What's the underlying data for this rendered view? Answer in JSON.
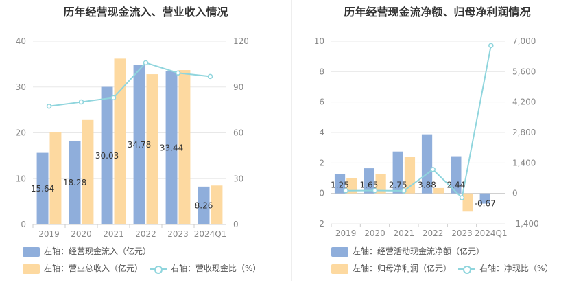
{
  "colors": {
    "bar_primary": "#8faedb",
    "bar_secondary": "#fdd9a0",
    "line": "#8fd5dd",
    "axis_text": "#888888",
    "grid": "#e8e8e8"
  },
  "chart_data": [
    {
      "type": "bar",
      "title": "历年经营现金流入、营业收入情况",
      "categories": [
        "2019",
        "2020",
        "2021",
        "2022",
        "2023",
        "2024Q1"
      ],
      "left_axis": {
        "ylim": [
          0,
          40
        ],
        "ticks": [
          "0",
          "10",
          "20",
          "30",
          "40"
        ]
      },
      "right_axis": {
        "ylim": [
          0,
          120
        ],
        "ticks": [
          "0",
          "30",
          "60",
          "90",
          "120"
        ]
      },
      "series": [
        {
          "name": "左轴：经营现金流入（亿元）",
          "axis": "left",
          "kind": "bar",
          "values": [
            15.64,
            18.28,
            30.03,
            34.78,
            33.44,
            8.26
          ],
          "labels": [
            "15.64",
            "18.28",
            "30.03",
            "34.78",
            "33.44",
            "8.26"
          ]
        },
        {
          "name": "左轴：营业总收入（亿元）",
          "axis": "left",
          "kind": "bar",
          "values": [
            20.2,
            22.8,
            36.2,
            32.8,
            33.7,
            8.5
          ]
        },
        {
          "name": "右轴：营收现金比（%）",
          "axis": "right",
          "kind": "line",
          "values": [
            77.4,
            80.2,
            83.0,
            105.9,
            99.2,
            96.9
          ]
        }
      ],
      "grid": true,
      "legend_position": "bottom-left"
    },
    {
      "type": "bar",
      "title": "历年经营现金流净额、归母净利润情况",
      "categories": [
        "2019",
        "2020",
        "2021",
        "2022",
        "2023",
        "2024Q1"
      ],
      "left_axis": {
        "ylim": [
          -2,
          10
        ],
        "ticks": [
          "-2",
          "0",
          "2",
          "4",
          "6",
          "8",
          "10"
        ]
      },
      "right_axis": {
        "ylim": [
          -1400,
          7000
        ],
        "ticks": [
          "-1,400",
          "0",
          "1,400",
          "2,800",
          "4,200",
          "5,600",
          "7,000"
        ]
      },
      "series": [
        {
          "name": "左轴：经营活动现金流净额（亿元）",
          "axis": "left",
          "kind": "bar",
          "values": [
            1.25,
            1.65,
            2.75,
            3.88,
            2.44,
            -0.67
          ],
          "labels": [
            "1.25",
            "1.65",
            "2.75",
            "3.88",
            "2.44",
            "-0.67"
          ]
        },
        {
          "name": "左轴：归母净利润（亿元）",
          "axis": "left",
          "kind": "bar",
          "values": [
            1.0,
            1.25,
            2.4,
            0.35,
            -1.2,
            0.0
          ]
        },
        {
          "name": "右轴：净现比（%）",
          "axis": "right",
          "kind": "line",
          "values": [
            125,
            132,
            115,
            1100,
            -200,
            6800
          ]
        }
      ],
      "grid": true,
      "legend_position": "bottom-left"
    }
  ]
}
